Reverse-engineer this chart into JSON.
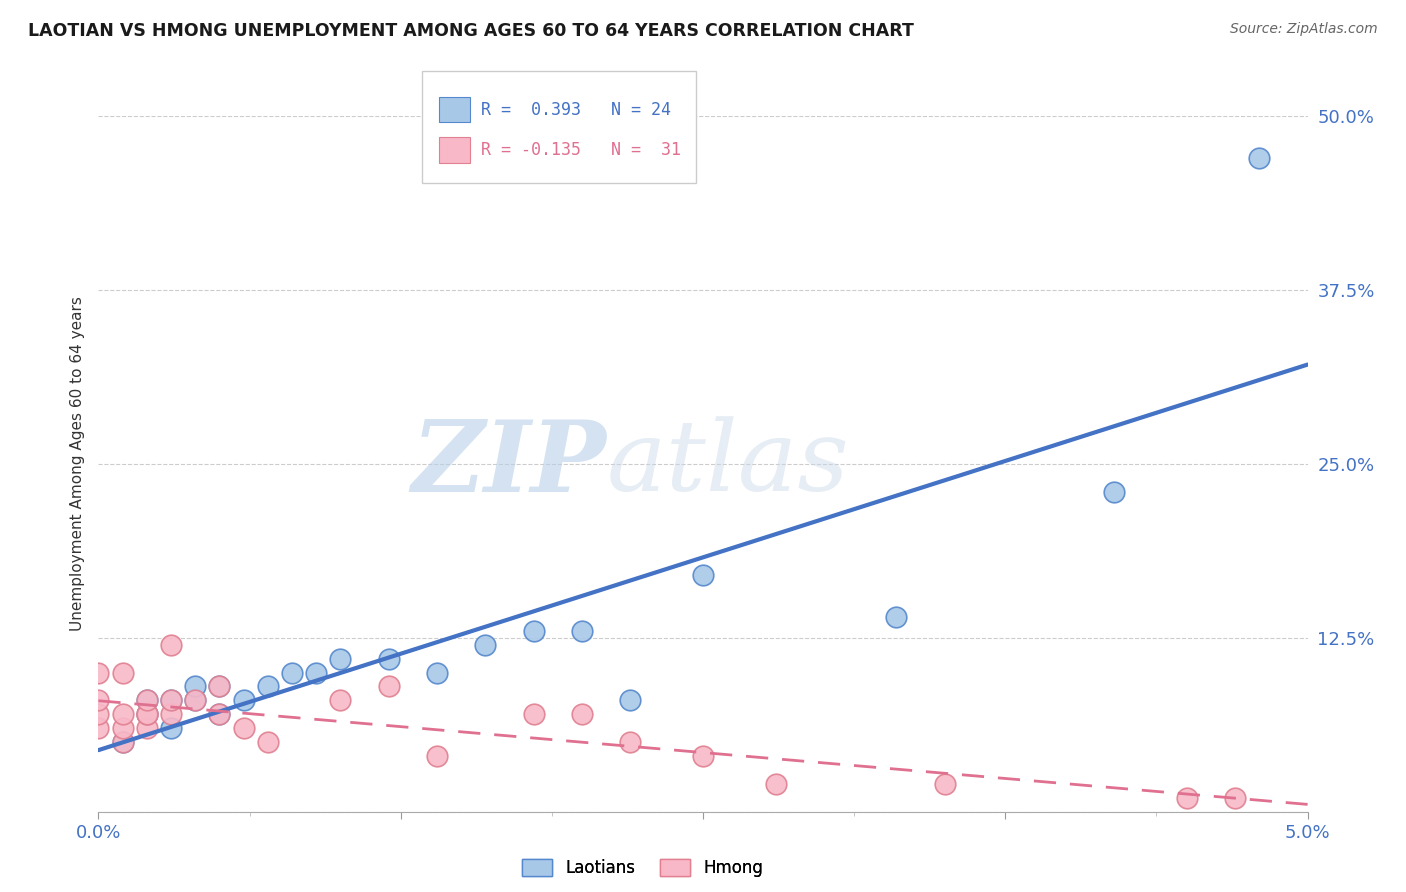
{
  "title": "LAOTIAN VS HMONG UNEMPLOYMENT AMONG AGES 60 TO 64 YEARS CORRELATION CHART",
  "source": "Source: ZipAtlas.com",
  "ylabel": "Unemployment Among Ages 60 to 64 years",
  "xlim": [
    0.0,
    0.05
  ],
  "ylim": [
    0.0,
    0.5
  ],
  "xtick_vals": [
    0.0,
    0.0125,
    0.025,
    0.0375,
    0.05
  ],
  "xtick_labels": [
    "0.0%",
    "",
    "",
    "",
    "5.0%"
  ],
  "ytick_vals": [
    0.0,
    0.125,
    0.25,
    0.375,
    0.5
  ],
  "ytick_labels": [
    "",
    "12.5%",
    "25.0%",
    "37.5%",
    "50.0%"
  ],
  "laotian_color": "#a8c8e8",
  "laotian_edge_color": "#5588cc",
  "laotian_line_color": "#4472c4",
  "hmong_color": "#f8b8c8",
  "hmong_edge_color": "#e08090",
  "hmong_line_color": "#e07090",
  "laotian_R": 0.393,
  "laotian_N": 24,
  "hmong_R": -0.135,
  "hmong_N": 31,
  "watermark_zip": "ZIP",
  "watermark_atlas": "atlas",
  "laotian_x": [
    0.001,
    0.002,
    0.002,
    0.003,
    0.003,
    0.004,
    0.004,
    0.005,
    0.005,
    0.006,
    0.007,
    0.008,
    0.009,
    0.01,
    0.012,
    0.014,
    0.016,
    0.018,
    0.02,
    0.022,
    0.025,
    0.033,
    0.042,
    0.048
  ],
  "laotian_y": [
    0.05,
    0.07,
    0.08,
    0.06,
    0.08,
    0.08,
    0.09,
    0.07,
    0.09,
    0.08,
    0.09,
    0.1,
    0.1,
    0.11,
    0.11,
    0.1,
    0.12,
    0.13,
    0.13,
    0.08,
    0.17,
    0.14,
    0.23,
    0.47
  ],
  "hmong_x": [
    0.0,
    0.0,
    0.0,
    0.0,
    0.001,
    0.001,
    0.001,
    0.001,
    0.002,
    0.002,
    0.002,
    0.002,
    0.003,
    0.003,
    0.003,
    0.004,
    0.005,
    0.005,
    0.006,
    0.007,
    0.01,
    0.012,
    0.014,
    0.018,
    0.02,
    0.022,
    0.025,
    0.028,
    0.035,
    0.045,
    0.047
  ],
  "hmong_y": [
    0.06,
    0.07,
    0.08,
    0.1,
    0.05,
    0.06,
    0.07,
    0.1,
    0.06,
    0.07,
    0.07,
    0.08,
    0.07,
    0.08,
    0.12,
    0.08,
    0.07,
    0.09,
    0.06,
    0.05,
    0.08,
    0.09,
    0.04,
    0.07,
    0.07,
    0.05,
    0.04,
    0.02,
    0.02,
    0.01,
    0.01
  ],
  "background_color": "#ffffff",
  "grid_color": "#cccccc",
  "tick_color": "#4472c4"
}
